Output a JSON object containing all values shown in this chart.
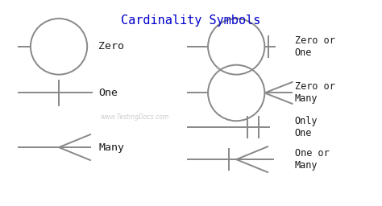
{
  "title": "Cardinality Symbols",
  "title_color": "#0000cc",
  "title_fontsize": 11,
  "bg_color": "#ffffff",
  "symbol_color": "#888888",
  "text_color": "#1a1a1a",
  "watermark": "www.TestingDocs.com",
  "fig_w": 4.74,
  "fig_h": 2.56,
  "dpi": 100,
  "xlim": [
    0,
    10
  ],
  "ylim": [
    0,
    10
  ]
}
